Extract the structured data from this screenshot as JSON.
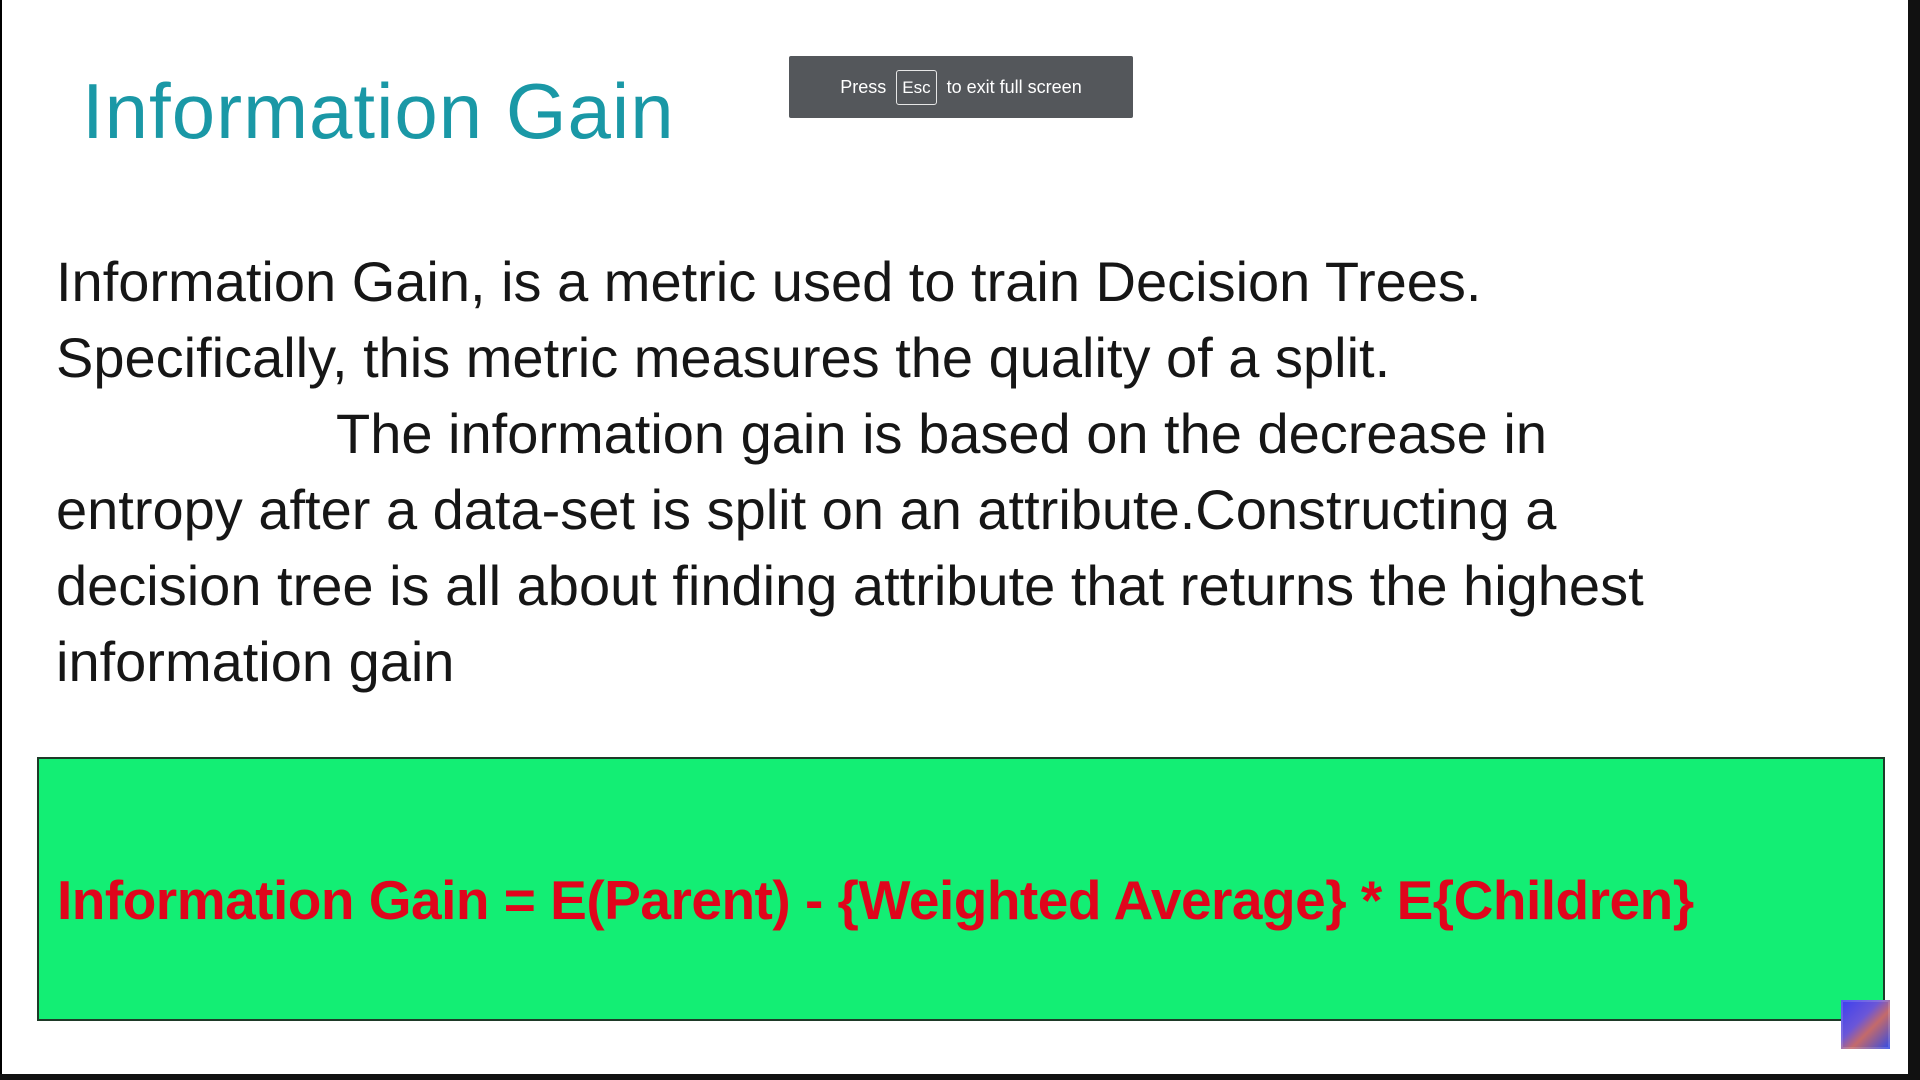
{
  "slide": {
    "title": "Information Gain",
    "body_lines": [
      "Information Gain, is a metric used to train Decision Trees.",
      "Specifically, this metric measures the quality of a split.",
      "The information gain is based on the decrease in",
      "entropy after a data-set is split on an attribute.Constructing a",
      "decision tree is all about finding attribute that returns the highest",
      "information gain"
    ],
    "formula": "Information Gain = E(Parent) - {Weighted Average} * E{Children}"
  },
  "fullscreen_toast": {
    "press": "Press",
    "key": "Esc",
    "suffix": "to exit full screen"
  },
  "colors": {
    "title": "#1a98a6",
    "formula_bg": "#13ee74",
    "formula_text": "#e0051c",
    "toast_bg": "#54575b"
  },
  "corner_badge_icon": "video-thumbnail-icon"
}
